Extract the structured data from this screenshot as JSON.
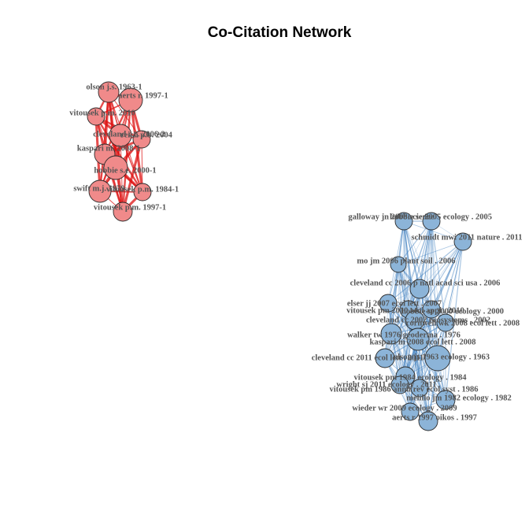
{
  "title": "Co-Citation Network",
  "colors": {
    "red_node": "#f08a8a",
    "red_edge": "#dd1111",
    "blue_node": "#8cb4d8",
    "blue_edge": "#3f7fbf",
    "node_border": "#2b2b2b",
    "label": "#555555"
  },
  "clusters": [
    {
      "name": "red",
      "nodes": [
        {
          "id": "olson",
          "label": "olson j.s. 1963-1"
        },
        {
          "id": "aerts",
          "label": "aerts r. 1997-1"
        },
        {
          "id": "vitousek2010",
          "label": "vitousek p.m. 2010"
        },
        {
          "id": "cleveland2006",
          "label": "cleveland c.c. 2006-2"
        },
        {
          "id": "reich2004",
          "label": "reich p.b. 2004"
        },
        {
          "id": "kaspari2008",
          "label": "kaspari m. 2008-1"
        },
        {
          "id": "hobbie2000",
          "label": "hobbie s.e. 2000-1"
        },
        {
          "id": "swift1979",
          "label": "swift m.j. 1979"
        },
        {
          "id": "vitousek1984",
          "label": "vitousek p.m. 1984-1"
        },
        {
          "id": "vitousek1997",
          "label": "vitousek p.m. 1997-1"
        }
      ]
    },
    {
      "name": "blue",
      "nodes": [
        {
          "id": "galloway2008",
          "label": "galloway jn 2008 science"
        },
        {
          "id": "hobbie2005",
          "label": "hobbie se 2005 ecology . 2005"
        },
        {
          "id": "schmidt2011",
          "label": "schmidt mwi 2011 nature . 2011"
        },
        {
          "id": "mo2006",
          "label": "mo jm 2006 plant soil . 2006"
        },
        {
          "id": "cleveland2006b",
          "label": "cleveland cc 2006 p natl acad sci usa . 2006"
        },
        {
          "id": "elser2007",
          "label": "elser jj 2007 ecol lett . 2007"
        },
        {
          "id": "vitousek2010b",
          "label": "vitousek pm 2010 ecol appl . 2010"
        },
        {
          "id": "hobbie2000b",
          "label": "hobbie se 2000 ecology . 2000"
        },
        {
          "id": "cleveland2002",
          "label": "cleveland cc 2002 ecosystems . 2002"
        },
        {
          "id": "cornwell2008",
          "label": "cornwell wk 2008 ecol lett . 2008"
        },
        {
          "id": "walker1976",
          "label": "walker tw 1976 geoderma . 1976"
        },
        {
          "id": "kaspari2008b",
          "label": "kaspari m 2008 ecol lett . 2008"
        },
        {
          "id": "olson1963",
          "label": "olson js 1963 ecology . 1963"
        },
        {
          "id": "cleveland2011",
          "label": "cleveland cc 2011 ecol lett . 2011"
        },
        {
          "id": "vitousek1984b",
          "label": "vitousek pm 1984 ecology . 1984"
        },
        {
          "id": "wright2011",
          "label": "wright sj 2011 ecology . 2011"
        },
        {
          "id": "vitousek1986",
          "label": "vitousek pm 1986 annu rev ecol syst . 1986"
        },
        {
          "id": "melillo1982",
          "label": "melillo jm 1982 ecology . 1982"
        },
        {
          "id": "wieder2009",
          "label": "wieder wr 2009 ecology . 2009"
        },
        {
          "id": "aerts1997",
          "label": "aerts r 1997 oikos . 1997"
        }
      ]
    }
  ]
}
